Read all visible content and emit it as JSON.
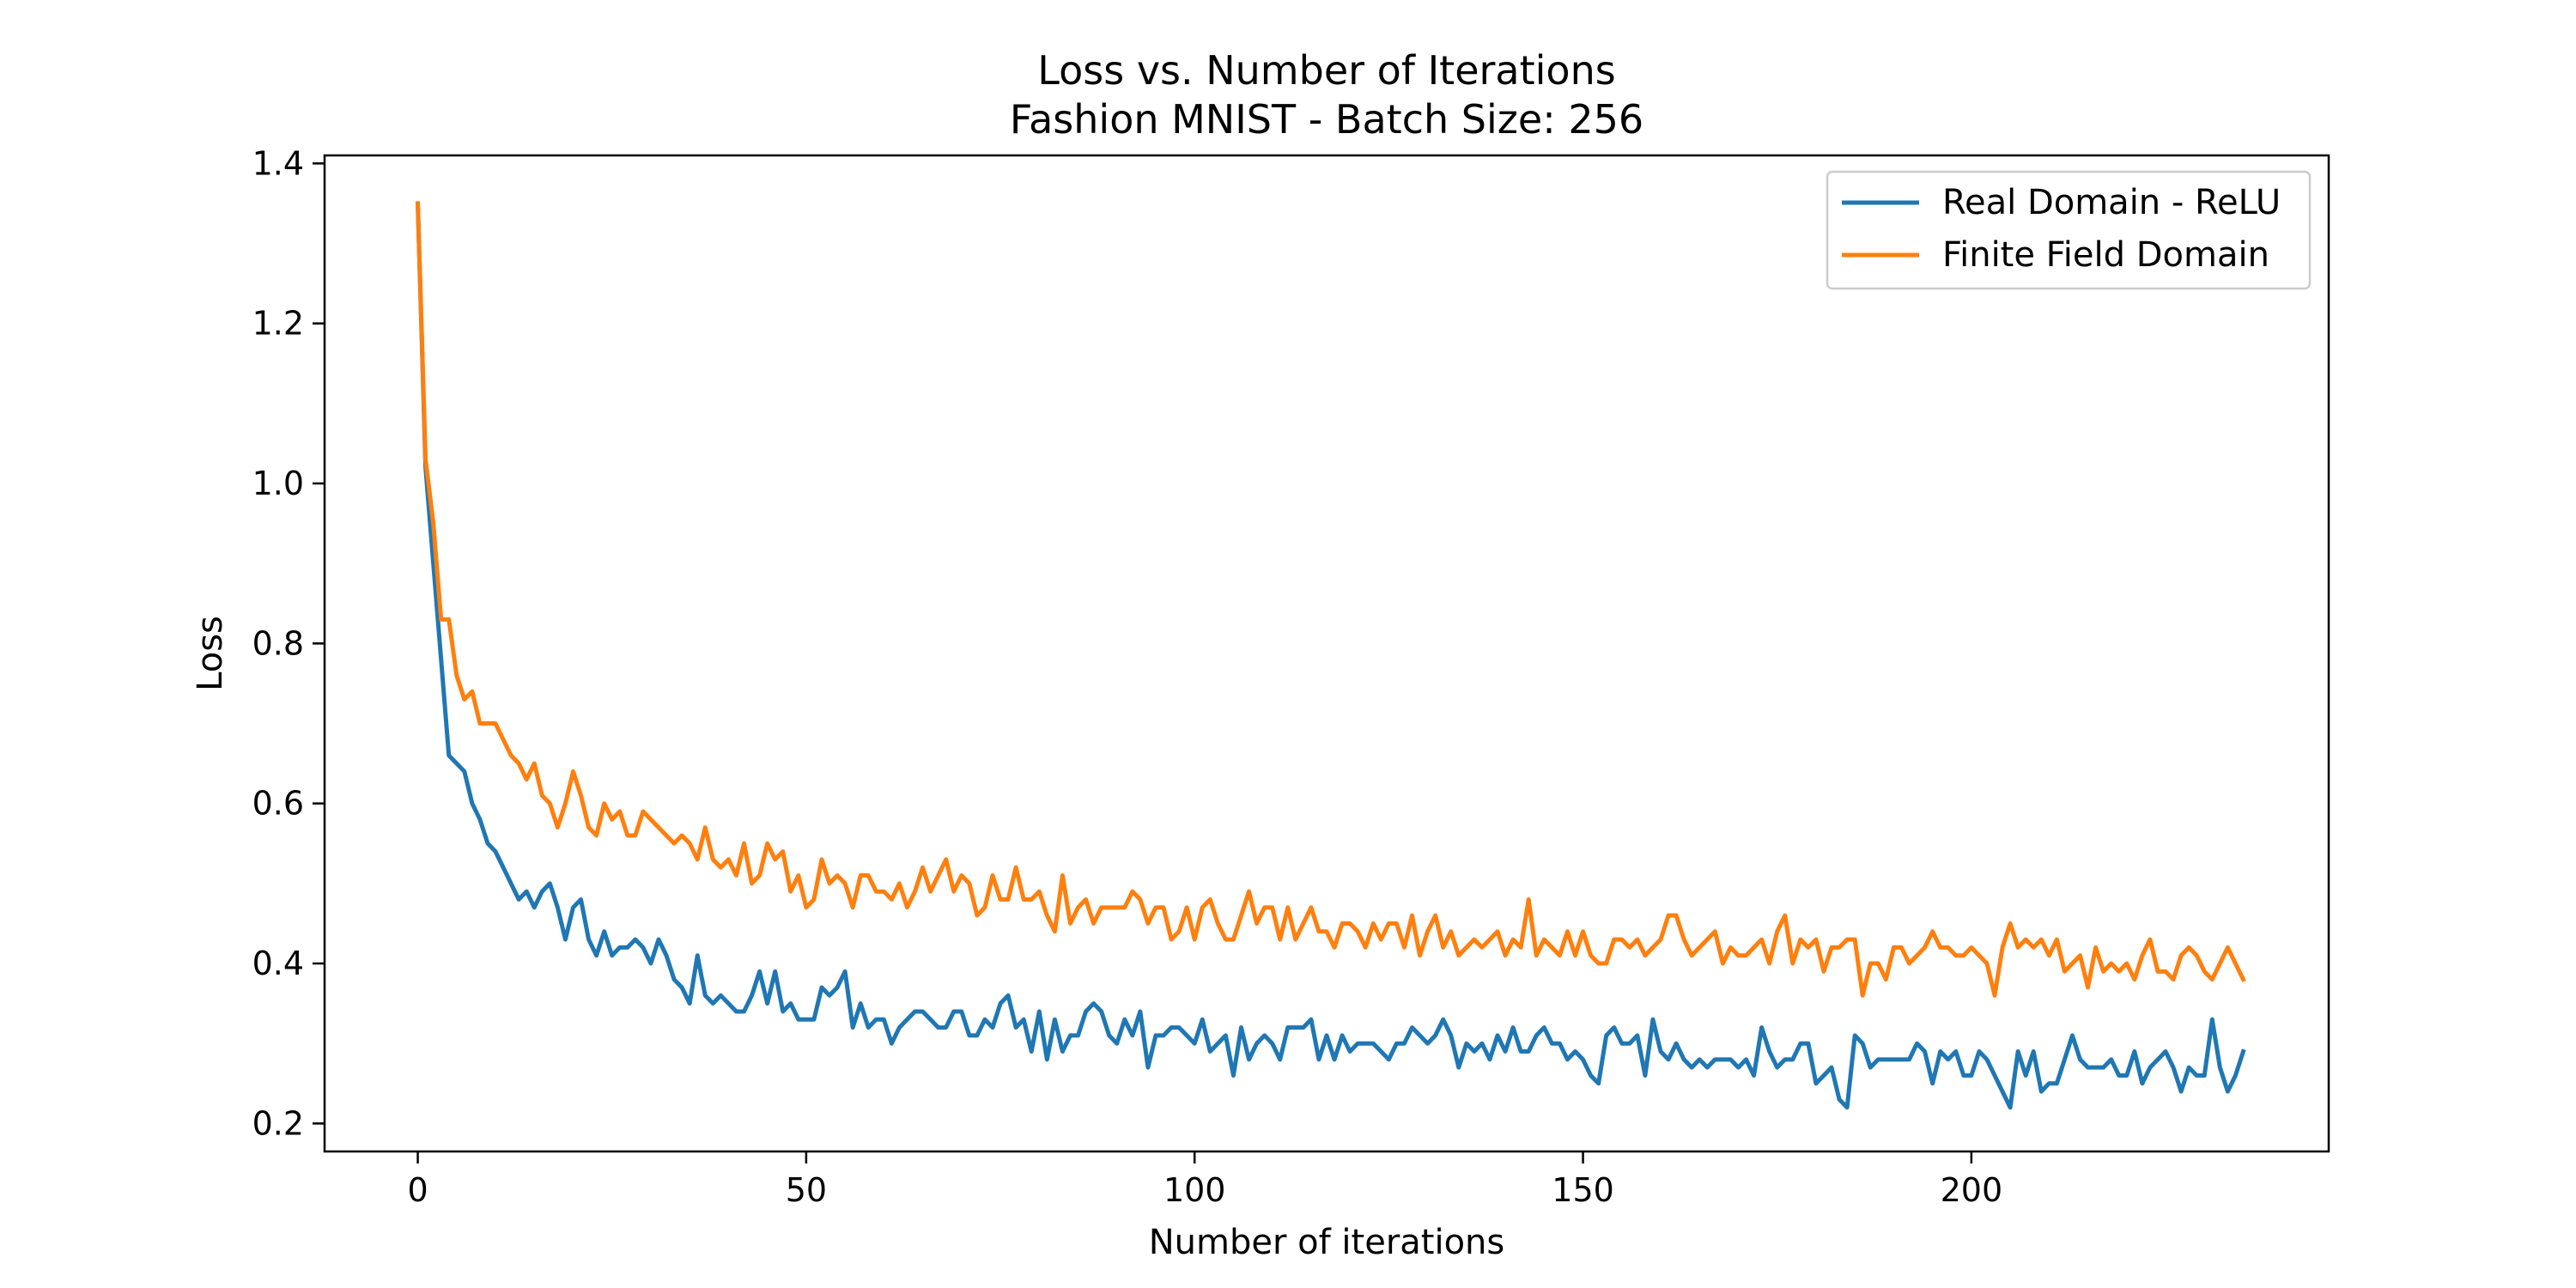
{
  "chart_data": {
    "type": "line",
    "title": "Loss vs. Number of Iterations",
    "subtitle": "Fashion MNIST - Batch Size: 256",
    "xlabel": "Number of iterations",
    "ylabel": "Loss",
    "xlim": [
      -12,
      246
    ],
    "ylim": [
      0.165,
      1.41
    ],
    "xticks": [
      0,
      50,
      100,
      150,
      200
    ],
    "yticks": [
      0.2,
      0.4,
      0.6,
      0.8,
      1.0,
      1.2,
      1.4
    ],
    "xtick_labels": [
      "0",
      "50",
      "100",
      "150",
      "200"
    ],
    "ytick_labels": [
      "0.2",
      "0.4",
      "0.6",
      "0.8",
      "1.0",
      "1.2",
      "1.4"
    ],
    "grid": false,
    "legend_position": "top-right",
    "series": [
      {
        "name": "Real Domain - ReLU",
        "color": "#1f77b4",
        "values": [
          1.35,
          1.02,
          0.9,
          0.78,
          0.66,
          0.65,
          0.64,
          0.6,
          0.58,
          0.55,
          0.54,
          0.52,
          0.5,
          0.48,
          0.49,
          0.47,
          0.49,
          0.5,
          0.47,
          0.43,
          0.47,
          0.48,
          0.43,
          0.41,
          0.44,
          0.41,
          0.42,
          0.42,
          0.43,
          0.42,
          0.4,
          0.43,
          0.41,
          0.38,
          0.37,
          0.35,
          0.41,
          0.36,
          0.35,
          0.36,
          0.35,
          0.34,
          0.34,
          0.36,
          0.39,
          0.35,
          0.39,
          0.34,
          0.35,
          0.33,
          0.33,
          0.33,
          0.37,
          0.36,
          0.37,
          0.39,
          0.32,
          0.35,
          0.32,
          0.33,
          0.33,
          0.3,
          0.32,
          0.33,
          0.34,
          0.34,
          0.33,
          0.32,
          0.32,
          0.34,
          0.34,
          0.31,
          0.31,
          0.33,
          0.32,
          0.35,
          0.36,
          0.32,
          0.33,
          0.29,
          0.34,
          0.28,
          0.33,
          0.29,
          0.31,
          0.31,
          0.34,
          0.35,
          0.34,
          0.31,
          0.3,
          0.33,
          0.31,
          0.34,
          0.27,
          0.31,
          0.31,
          0.32,
          0.32,
          0.31,
          0.3,
          0.33,
          0.29,
          0.3,
          0.31,
          0.26,
          0.32,
          0.28,
          0.3,
          0.31,
          0.3,
          0.28,
          0.32,
          0.32,
          0.32,
          0.33,
          0.28,
          0.31,
          0.28,
          0.31,
          0.29,
          0.3,
          0.3,
          0.3,
          0.29,
          0.28,
          0.3,
          0.3,
          0.32,
          0.31,
          0.3,
          0.31,
          0.33,
          0.31,
          0.27,
          0.3,
          0.29,
          0.3,
          0.28,
          0.31,
          0.29,
          0.32,
          0.29,
          0.29,
          0.31,
          0.32,
          0.3,
          0.3,
          0.28,
          0.29,
          0.28,
          0.26,
          0.25,
          0.31,
          0.32,
          0.3,
          0.3,
          0.31,
          0.26,
          0.33,
          0.29,
          0.28,
          0.3,
          0.28,
          0.27,
          0.28,
          0.27,
          0.28,
          0.28,
          0.28,
          0.27,
          0.28,
          0.26,
          0.32,
          0.29,
          0.27,
          0.28,
          0.28,
          0.3,
          0.3,
          0.25,
          0.26,
          0.27,
          0.23,
          0.22,
          0.31,
          0.3,
          0.27,
          0.28,
          0.28,
          0.28,
          0.28,
          0.28,
          0.3,
          0.29,
          0.25,
          0.29,
          0.28,
          0.29,
          0.26,
          0.26,
          0.29,
          0.28,
          0.26,
          0.24,
          0.22,
          0.29,
          0.26,
          0.29,
          0.24,
          0.25,
          0.25,
          0.28,
          0.31,
          0.28,
          0.27,
          0.27,
          0.27,
          0.28,
          0.26,
          0.26,
          0.29,
          0.25,
          0.27,
          0.28,
          0.29,
          0.27,
          0.24,
          0.27,
          0.26,
          0.26,
          0.33,
          0.27,
          0.24,
          0.26,
          0.29
        ]
      },
      {
        "name": "Finite Field Domain",
        "color": "#ff7f0e",
        "values": [
          1.35,
          1.03,
          0.95,
          0.83,
          0.83,
          0.76,
          0.73,
          0.74,
          0.7,
          0.7,
          0.7,
          0.68,
          0.66,
          0.65,
          0.63,
          0.65,
          0.61,
          0.6,
          0.57,
          0.6,
          0.64,
          0.61,
          0.57,
          0.56,
          0.6,
          0.58,
          0.59,
          0.56,
          0.56,
          0.59,
          0.58,
          0.57,
          0.56,
          0.55,
          0.56,
          0.55,
          0.53,
          0.57,
          0.53,
          0.52,
          0.53,
          0.51,
          0.55,
          0.5,
          0.51,
          0.55,
          0.53,
          0.54,
          0.49,
          0.51,
          0.47,
          0.48,
          0.53,
          0.5,
          0.51,
          0.5,
          0.47,
          0.51,
          0.51,
          0.49,
          0.49,
          0.48,
          0.5,
          0.47,
          0.49,
          0.52,
          0.49,
          0.51,
          0.53,
          0.49,
          0.51,
          0.5,
          0.46,
          0.47,
          0.51,
          0.48,
          0.48,
          0.52,
          0.48,
          0.48,
          0.49,
          0.46,
          0.44,
          0.51,
          0.45,
          0.47,
          0.48,
          0.45,
          0.47,
          0.47,
          0.47,
          0.47,
          0.49,
          0.48,
          0.45,
          0.47,
          0.47,
          0.43,
          0.44,
          0.47,
          0.43,
          0.47,
          0.48,
          0.45,
          0.43,
          0.43,
          0.46,
          0.49,
          0.45,
          0.47,
          0.47,
          0.43,
          0.47,
          0.43,
          0.45,
          0.47,
          0.44,
          0.44,
          0.42,
          0.45,
          0.45,
          0.44,
          0.42,
          0.45,
          0.43,
          0.45,
          0.45,
          0.42,
          0.46,
          0.41,
          0.44,
          0.46,
          0.42,
          0.44,
          0.41,
          0.42,
          0.43,
          0.42,
          0.43,
          0.44,
          0.41,
          0.43,
          0.42,
          0.48,
          0.41,
          0.43,
          0.42,
          0.41,
          0.44,
          0.41,
          0.44,
          0.41,
          0.4,
          0.4,
          0.43,
          0.43,
          0.42,
          0.43,
          0.41,
          0.42,
          0.43,
          0.46,
          0.46,
          0.43,
          0.41,
          0.42,
          0.43,
          0.44,
          0.4,
          0.42,
          0.41,
          0.41,
          0.42,
          0.43,
          0.4,
          0.44,
          0.46,
          0.4,
          0.43,
          0.42,
          0.43,
          0.39,
          0.42,
          0.42,
          0.43,
          0.43,
          0.36,
          0.4,
          0.4,
          0.38,
          0.42,
          0.42,
          0.4,
          0.41,
          0.42,
          0.44,
          0.42,
          0.42,
          0.41,
          0.41,
          0.42,
          0.41,
          0.4,
          0.36,
          0.42,
          0.45,
          0.42,
          0.43,
          0.42,
          0.43,
          0.41,
          0.43,
          0.39,
          0.4,
          0.41,
          0.37,
          0.42,
          0.39,
          0.4,
          0.39,
          0.4,
          0.38,
          0.41,
          0.43,
          0.39,
          0.39,
          0.38,
          0.41,
          0.42,
          0.41,
          0.39,
          0.38,
          0.4,
          0.42,
          0.4,
          0.38
        ]
      }
    ]
  }
}
